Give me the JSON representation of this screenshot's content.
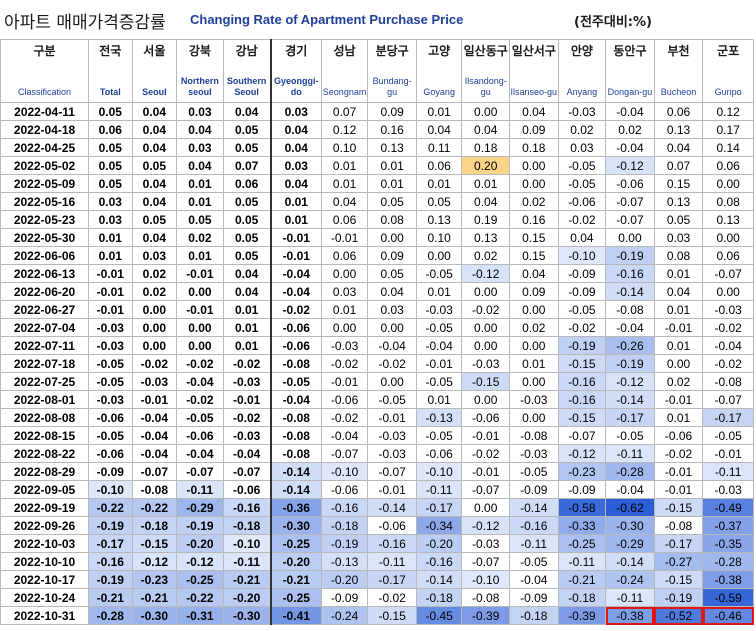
{
  "title": {
    "korean": "아파트 매매가격증감률",
    "english": "Changing Rate of Apartment Purchase Price",
    "unit": "(전주대비:%)"
  },
  "columns": [
    {
      "ko": "구분",
      "en": "Classification"
    },
    {
      "ko": "전국",
      "en": "Total"
    },
    {
      "ko": "서울",
      "en": "Seoul"
    },
    {
      "ko": "강북",
      "en": "Northern seoul"
    },
    {
      "ko": "강남",
      "en": "Southern Seoul"
    },
    {
      "ko": "경기",
      "en": "Gyeonggi-do"
    },
    {
      "ko": "성남",
      "en": "Seongnam"
    },
    {
      "ko": "분당구",
      "en": "Bundang-gu"
    },
    {
      "ko": "고양",
      "en": "Goyang"
    },
    {
      "ko": "일산동구",
      "en": "Ilsandong-gu"
    },
    {
      "ko": "일산서구",
      "en": "Ilsanseo-gu"
    },
    {
      "ko": "안양",
      "en": "Anyang"
    },
    {
      "ko": "동안구",
      "en": "Dongan-gu"
    },
    {
      "ko": "부천",
      "en": "Bucheon"
    },
    {
      "ko": "군포",
      "en": "Gunpo"
    }
  ],
  "colors": {
    "header_en": "#1f3f99",
    "highlight_border": "#e01515",
    "positive_highlight": "#fbd48a"
  },
  "rows": [
    {
      "date": "2022-04-11",
      "values": [
        "0.05",
        "0.04",
        "0.03",
        "0.04",
        "0.03",
        "0.07",
        "0.09",
        "0.01",
        "0.00",
        "0.04",
        "-0.03",
        "-0.04",
        "0.06",
        "0.12"
      ]
    },
    {
      "date": "2022-04-18",
      "values": [
        "0.06",
        "0.04",
        "0.04",
        "0.05",
        "0.04",
        "0.12",
        "0.16",
        "0.04",
        "0.04",
        "0.09",
        "0.02",
        "0.02",
        "0.13",
        "0.17"
      ]
    },
    {
      "date": "2022-04-25",
      "values": [
        "0.05",
        "0.04",
        "0.03",
        "0.05",
        "0.04",
        "0.10",
        "0.13",
        "0.11",
        "0.18",
        "0.18",
        "0.03",
        "-0.04",
        "0.04",
        "0.14"
      ]
    },
    {
      "date": "2022-05-02",
      "values": [
        "0.05",
        "0.05",
        "0.04",
        "0.07",
        "0.03",
        "0.01",
        "0.01",
        "0.06",
        "0.20",
        "0.00",
        "-0.05",
        "-0.12",
        "0.07",
        "0.06"
      ]
    },
    {
      "date": "2022-05-09",
      "values": [
        "0.05",
        "0.04",
        "0.01",
        "0.06",
        "0.04",
        "0.01",
        "0.01",
        "0.01",
        "0.01",
        "0.00",
        "-0.05",
        "-0.06",
        "0.15",
        "0.00"
      ]
    },
    {
      "date": "2022-05-16",
      "values": [
        "0.03",
        "0.04",
        "0.01",
        "0.05",
        "0.01",
        "0.04",
        "0.05",
        "0.05",
        "0.04",
        "0.02",
        "-0.06",
        "-0.07",
        "0.13",
        "0.08"
      ]
    },
    {
      "date": "2022-05-23",
      "values": [
        "0.03",
        "0.05",
        "0.05",
        "0.05",
        "0.01",
        "0.06",
        "0.08",
        "0.13",
        "0.19",
        "0.16",
        "-0.02",
        "-0.07",
        "0.05",
        "0.13"
      ]
    },
    {
      "date": "2022-05-30",
      "values": [
        "0.01",
        "0.04",
        "0.02",
        "0.05",
        "-0.01",
        "-0.01",
        "0.00",
        "0.10",
        "0.13",
        "0.15",
        "0.04",
        "0.00",
        "0.03",
        "0.00"
      ]
    },
    {
      "date": "2022-06-06",
      "values": [
        "0.01",
        "0.03",
        "0.01",
        "0.05",
        "-0.01",
        "0.06",
        "0.09",
        "0.00",
        "0.02",
        "0.15",
        "-0.10",
        "-0.19",
        "0.08",
        "0.06"
      ]
    },
    {
      "date": "2022-06-13",
      "values": [
        "-0.01",
        "0.02",
        "-0.01",
        "0.04",
        "-0.04",
        "0.00",
        "0.05",
        "-0.05",
        "-0.12",
        "0.04",
        "-0.09",
        "-0.16",
        "0.01",
        "-0.07"
      ]
    },
    {
      "date": "2022-06-20",
      "values": [
        "-0.01",
        "0.02",
        "0.00",
        "0.04",
        "-0.04",
        "0.03",
        "0.04",
        "0.01",
        "0.00",
        "0.09",
        "-0.09",
        "-0.14",
        "0.04",
        "0.00"
      ]
    },
    {
      "date": "2022-06-27",
      "values": [
        "-0.01",
        "0.00",
        "-0.01",
        "0.01",
        "-0.02",
        "0.01",
        "0.03",
        "-0.03",
        "-0.02",
        "0.00",
        "-0.05",
        "-0.08",
        "0.01",
        "-0.03"
      ]
    },
    {
      "date": "2022-07-04",
      "values": [
        "-0.03",
        "0.00",
        "0.00",
        "0.01",
        "-0.06",
        "0.00",
        "0.00",
        "-0.05",
        "0.00",
        "0.02",
        "-0.02",
        "-0.04",
        "-0.01",
        "-0.02"
      ]
    },
    {
      "date": "2022-07-11",
      "values": [
        "-0.03",
        "0.00",
        "0.00",
        "0.01",
        "-0.06",
        "-0.03",
        "-0.04",
        "-0.04",
        "0.00",
        "0.00",
        "-0.19",
        "-0.26",
        "0.01",
        "-0.04"
      ]
    },
    {
      "date": "2022-07-18",
      "values": [
        "-0.05",
        "-0.02",
        "-0.02",
        "-0.02",
        "-0.08",
        "-0.02",
        "-0.02",
        "-0.01",
        "-0.03",
        "0.01",
        "-0.15",
        "-0.19",
        "0.00",
        "-0.02"
      ]
    },
    {
      "date": "2022-07-25",
      "values": [
        "-0.05",
        "-0.03",
        "-0.04",
        "-0.03",
        "-0.05",
        "-0.01",
        "0.00",
        "-0.05",
        "-0.15",
        "0.00",
        "-0.16",
        "-0.12",
        "0.02",
        "-0.08"
      ]
    },
    {
      "date": "2022-08-01",
      "values": [
        "-0.03",
        "-0.01",
        "-0.02",
        "-0.01",
        "-0.04",
        "-0.06",
        "-0.05",
        "0.01",
        "0.00",
        "-0.03",
        "-0.16",
        "-0.14",
        "-0.01",
        "-0.07"
      ]
    },
    {
      "date": "2022-08-08",
      "values": [
        "-0.06",
        "-0.04",
        "-0.05",
        "-0.02",
        "-0.08",
        "-0.02",
        "-0.01",
        "-0.13",
        "-0.06",
        "0.00",
        "-0.15",
        "-0.17",
        "0.01",
        "-0.17"
      ]
    },
    {
      "date": "2022-08-15",
      "values": [
        "-0.05",
        "-0.04",
        "-0.06",
        "-0.03",
        "-0.08",
        "-0.04",
        "-0.03",
        "-0.05",
        "-0.01",
        "-0.08",
        "-0.07",
        "-0.05",
        "-0.06",
        "-0.05"
      ]
    },
    {
      "date": "2022-08-22",
      "values": [
        "-0.06",
        "-0.04",
        "-0.04",
        "-0.04",
        "-0.08",
        "-0.07",
        "-0.03",
        "-0.06",
        "-0.02",
        "-0.03",
        "-0.12",
        "-0.11",
        "-0.02",
        "-0.01"
      ]
    },
    {
      "date": "2022-08-29",
      "values": [
        "-0.09",
        "-0.07",
        "-0.07",
        "-0.07",
        "-0.14",
        "-0.10",
        "-0.07",
        "-0.10",
        "-0.01",
        "-0.05",
        "-0.23",
        "-0.28",
        "-0.01",
        "-0.11"
      ]
    },
    {
      "date": "2022-09-05",
      "values": [
        "-0.10",
        "-0.08",
        "-0.11",
        "-0.06",
        "-0.14",
        "-0.06",
        "-0.01",
        "-0.11",
        "-0.07",
        "-0.09",
        "-0.09",
        "-0.04",
        "-0.01",
        "-0.03"
      ]
    },
    {
      "date": "2022-09-19",
      "values": [
        "-0.22",
        "-0.22",
        "-0.29",
        "-0.16",
        "-0.36",
        "-0.16",
        "-0.14",
        "-0.17",
        "0.00",
        "-0.14",
        "-0.58",
        "-0.62",
        "-0.15",
        "-0.49"
      ]
    },
    {
      "date": "2022-09-26",
      "values": [
        "-0.19",
        "-0.18",
        "-0.19",
        "-0.18",
        "-0.30",
        "-0.18",
        "-0.06",
        "-0.34",
        "-0.12",
        "-0.16",
        "-0.33",
        "-0.30",
        "-0.08",
        "-0.37"
      ]
    },
    {
      "date": "2022-10-03",
      "values": [
        "-0.17",
        "-0.15",
        "-0.20",
        "-0.10",
        "-0.25",
        "-0.19",
        "-0.16",
        "-0.20",
        "-0.03",
        "-0.11",
        "-0.25",
        "-0.29",
        "-0.17",
        "-0.35"
      ]
    },
    {
      "date": "2022-10-10",
      "values": [
        "-0.16",
        "-0.12",
        "-0.12",
        "-0.11",
        "-0.20",
        "-0.13",
        "-0.11",
        "-0.16",
        "-0.07",
        "-0.05",
        "-0.11",
        "-0.14",
        "-0.27",
        "-0.28"
      ]
    },
    {
      "date": "2022-10-17",
      "values": [
        "-0.19",
        "-0.23",
        "-0.25",
        "-0.21",
        "-0.21",
        "-0.20",
        "-0.17",
        "-0.14",
        "-0.10",
        "-0.04",
        "-0.21",
        "-0.24",
        "-0.15",
        "-0.38"
      ]
    },
    {
      "date": "2022-10-24",
      "values": [
        "-0.21",
        "-0.21",
        "-0.22",
        "-0.20",
        "-0.25",
        "-0.09",
        "-0.02",
        "-0.18",
        "-0.08",
        "-0.09",
        "-0.18",
        "-0.11",
        "-0.19",
        "-0.59"
      ]
    },
    {
      "date": "2022-10-31",
      "values": [
        "-0.28",
        "-0.30",
        "-0.31",
        "-0.30",
        "-0.41",
        "-0.24",
        "-0.15",
        "-0.45",
        "-0.39",
        "-0.18",
        "-0.39",
        "-0.38",
        "-0.52",
        "-0.46"
      ]
    }
  ],
  "highlighted_cells": [
    {
      "row": 28,
      "col": 12
    },
    {
      "row": 28,
      "col": 13
    },
    {
      "row": 28,
      "col": 14
    }
  ]
}
